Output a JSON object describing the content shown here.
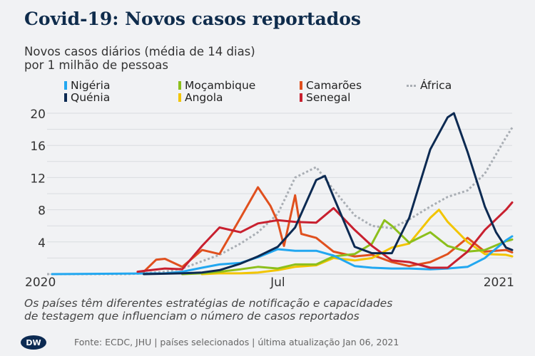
{
  "title": "Covid-19: Novos casos reportados",
  "subtitle": [
    "Novos casos diários (média de 14 dias)",
    "por 1 milhão de pessoas"
  ],
  "note": [
    "Os países têm diferentes estratégias de notificação e capacidades",
    "de testagem que influenciam o número de casos reportados"
  ],
  "footer": "Fonte: ECDC, JHU | países selecionados | última atualização Jan 06, 2021",
  "logo_text": "DW",
  "chart_data": {
    "type": "line",
    "title": "Covid-19: Novos casos reportados",
    "ylabel": "Novos casos diários (média de 14 dias) por 1 milhão de pessoas",
    "ylim": [
      0,
      20
    ],
    "yticks": [
      4,
      8,
      12,
      16,
      20
    ],
    "xlim": [
      "2019-12-28",
      "2021-01-06"
    ],
    "xticks": [
      {
        "date": "2020-01-01",
        "label": "2020"
      },
      {
        "date": "2020-07-01",
        "label": "Jul"
      },
      {
        "date": "2021-01-01",
        "label": "2021"
      }
    ],
    "grid": true,
    "legend": "top",
    "series": [
      {
        "name": "Nigéria",
        "color": "#22a7f0",
        "style": "solid",
        "points": [
          [
            "2020-01-01",
            0
          ],
          [
            "2020-04-01",
            0.1
          ],
          [
            "2020-04-15",
            0.3
          ],
          [
            "2020-05-01",
            0.8
          ],
          [
            "2020-05-15",
            1.2
          ],
          [
            "2020-06-01",
            1.4
          ],
          [
            "2020-06-15",
            2.1
          ],
          [
            "2020-07-01",
            3.1
          ],
          [
            "2020-07-15",
            2.9
          ],
          [
            "2020-08-01",
            2.9
          ],
          [
            "2020-08-15",
            2.3
          ],
          [
            "2020-09-01",
            1.0
          ],
          [
            "2020-09-15",
            0.8
          ],
          [
            "2020-10-01",
            0.7
          ],
          [
            "2020-10-15",
            0.7
          ],
          [
            "2020-11-01",
            0.6
          ],
          [
            "2020-11-15",
            0.7
          ],
          [
            "2020-12-01",
            0.9
          ],
          [
            "2020-12-15",
            2.0
          ],
          [
            "2021-01-01",
            4.2
          ],
          [
            "2021-01-06",
            4.7
          ]
        ]
      },
      {
        "name": "Moçambique",
        "color": "#8cbf1c",
        "style": "solid",
        "points": [
          [
            "2020-04-15",
            0
          ],
          [
            "2020-05-01",
            0.1
          ],
          [
            "2020-05-15",
            0.3
          ],
          [
            "2020-06-01",
            0.6
          ],
          [
            "2020-06-15",
            0.9
          ],
          [
            "2020-07-01",
            0.7
          ],
          [
            "2020-07-15",
            1.2
          ],
          [
            "2020-08-01",
            1.2
          ],
          [
            "2020-08-15",
            2.2
          ],
          [
            "2020-09-01",
            2.5
          ],
          [
            "2020-09-15",
            3.8
          ],
          [
            "2020-09-25",
            6.7
          ],
          [
            "2020-10-01",
            6.0
          ],
          [
            "2020-10-15",
            3.9
          ],
          [
            "2020-11-01",
            5.2
          ],
          [
            "2020-11-15",
            3.5
          ],
          [
            "2020-12-01",
            2.8
          ],
          [
            "2020-12-15",
            3.0
          ],
          [
            "2021-01-01",
            4.1
          ],
          [
            "2021-01-06",
            4.3
          ]
        ]
      },
      {
        "name": "Camarões",
        "color": "#e0501e",
        "style": "solid",
        "points": [
          [
            "2020-03-10",
            0.2
          ],
          [
            "2020-03-15",
            0.3
          ],
          [
            "2020-03-25",
            1.8
          ],
          [
            "2020-04-01",
            1.9
          ],
          [
            "2020-04-15",
            0.9
          ],
          [
            "2020-05-01",
            3.0
          ],
          [
            "2020-05-15",
            2.5
          ],
          [
            "2020-06-01",
            7.0
          ],
          [
            "2020-06-15",
            10.8
          ],
          [
            "2020-06-25",
            8.5
          ],
          [
            "2020-07-01",
            6.5
          ],
          [
            "2020-07-06",
            3.5
          ],
          [
            "2020-07-15",
            9.8
          ],
          [
            "2020-07-20",
            5.0
          ],
          [
            "2020-08-01",
            4.5
          ],
          [
            "2020-08-15",
            2.8
          ],
          [
            "2020-09-01",
            2.2
          ],
          [
            "2020-09-15",
            2.4
          ],
          [
            "2020-10-01",
            1.5
          ],
          [
            "2020-10-15",
            1.0
          ],
          [
            "2020-11-01",
            1.5
          ],
          [
            "2020-11-15",
            2.5
          ],
          [
            "2020-12-01",
            4.5
          ],
          [
            "2020-12-15",
            2.8
          ],
          [
            "2021-01-01",
            3.0
          ],
          [
            "2021-01-06",
            2.7
          ]
        ]
      },
      {
        "name": "África",
        "color": "#a9aeb4",
        "style": "dotted",
        "points": [
          [
            "2019-12-28",
            0
          ],
          [
            "2020-03-01",
            0
          ],
          [
            "2020-03-15",
            0.1
          ],
          [
            "2020-04-01",
            0.3
          ],
          [
            "2020-04-15",
            0.7
          ],
          [
            "2020-05-01",
            1.6
          ],
          [
            "2020-05-15",
            2.4
          ],
          [
            "2020-06-01",
            3.8
          ],
          [
            "2020-06-15",
            5.2
          ],
          [
            "2020-07-01",
            7.5
          ],
          [
            "2020-07-15",
            12.0
          ],
          [
            "2020-08-01",
            13.3
          ],
          [
            "2020-08-15",
            10.5
          ],
          [
            "2020-09-01",
            7.3
          ],
          [
            "2020-09-15",
            6.0
          ],
          [
            "2020-10-01",
            5.7
          ],
          [
            "2020-10-15",
            6.8
          ],
          [
            "2020-11-01",
            8.4
          ],
          [
            "2020-11-15",
            9.6
          ],
          [
            "2020-12-01",
            10.4
          ],
          [
            "2020-12-15",
            12.5
          ],
          [
            "2021-01-01",
            17.0
          ],
          [
            "2021-01-06",
            18.2
          ]
        ]
      },
      {
        "name": "Quénia",
        "color": "#0c2a52",
        "style": "solid",
        "points": [
          [
            "2020-03-15",
            0
          ],
          [
            "2020-04-15",
            0.1
          ],
          [
            "2020-05-01",
            0.2
          ],
          [
            "2020-05-15",
            0.5
          ],
          [
            "2020-06-01",
            1.3
          ],
          [
            "2020-06-15",
            2.2
          ],
          [
            "2020-07-01",
            3.4
          ],
          [
            "2020-07-15",
            5.8
          ],
          [
            "2020-08-01",
            11.7
          ],
          [
            "2020-08-08",
            12.2
          ],
          [
            "2020-08-15",
            9.6
          ],
          [
            "2020-09-01",
            3.4
          ],
          [
            "2020-09-15",
            2.6
          ],
          [
            "2020-10-01",
            2.6
          ],
          [
            "2020-10-15",
            7.0
          ],
          [
            "2020-11-01",
            15.5
          ],
          [
            "2020-11-15",
            19.5
          ],
          [
            "2020-11-20",
            20.0
          ],
          [
            "2020-12-01",
            15.2
          ],
          [
            "2020-12-15",
            8.4
          ],
          [
            "2020-12-24",
            5.2
          ],
          [
            "2021-01-01",
            3.3
          ],
          [
            "2021-01-06",
            3.0
          ]
        ]
      },
      {
        "name": "Angola",
        "color": "#f2c500",
        "style": "solid",
        "points": [
          [
            "2020-05-01",
            0
          ],
          [
            "2020-05-15",
            0.1
          ],
          [
            "2020-06-01",
            0.1
          ],
          [
            "2020-06-15",
            0.2
          ],
          [
            "2020-07-01",
            0.5
          ],
          [
            "2020-07-15",
            0.9
          ],
          [
            "2020-08-01",
            1.1
          ],
          [
            "2020-08-15",
            2.0
          ],
          [
            "2020-09-01",
            1.7
          ],
          [
            "2020-09-15",
            2.0
          ],
          [
            "2020-10-01",
            3.3
          ],
          [
            "2020-10-15",
            3.8
          ],
          [
            "2020-11-01",
            7.0
          ],
          [
            "2020-11-08",
            8.0
          ],
          [
            "2020-11-15",
            6.5
          ],
          [
            "2020-12-01",
            4.0
          ],
          [
            "2020-12-15",
            2.5
          ],
          [
            "2021-01-01",
            2.4
          ],
          [
            "2021-01-06",
            2.2
          ]
        ]
      },
      {
        "name": "Senegal",
        "color": "#c8202f",
        "style": "solid",
        "points": [
          [
            "2020-03-10",
            0.3
          ],
          [
            "2020-03-15",
            0.4
          ],
          [
            "2020-04-01",
            0.7
          ],
          [
            "2020-04-15",
            0.6
          ],
          [
            "2020-05-01",
            3.5
          ],
          [
            "2020-05-15",
            5.8
          ],
          [
            "2020-06-01",
            5.2
          ],
          [
            "2020-06-15",
            6.3
          ],
          [
            "2020-07-01",
            6.7
          ],
          [
            "2020-07-15",
            6.5
          ],
          [
            "2020-08-01",
            6.4
          ],
          [
            "2020-08-15",
            8.2
          ],
          [
            "2020-09-01",
            5.5
          ],
          [
            "2020-09-15",
            3.5
          ],
          [
            "2020-10-01",
            1.7
          ],
          [
            "2020-10-15",
            1.5
          ],
          [
            "2020-11-01",
            0.8
          ],
          [
            "2020-11-15",
            0.8
          ],
          [
            "2020-12-01",
            2.8
          ],
          [
            "2020-12-15",
            5.5
          ],
          [
            "2021-01-01",
            8.0
          ],
          [
            "2021-01-06",
            8.9
          ]
        ]
      }
    ]
  }
}
